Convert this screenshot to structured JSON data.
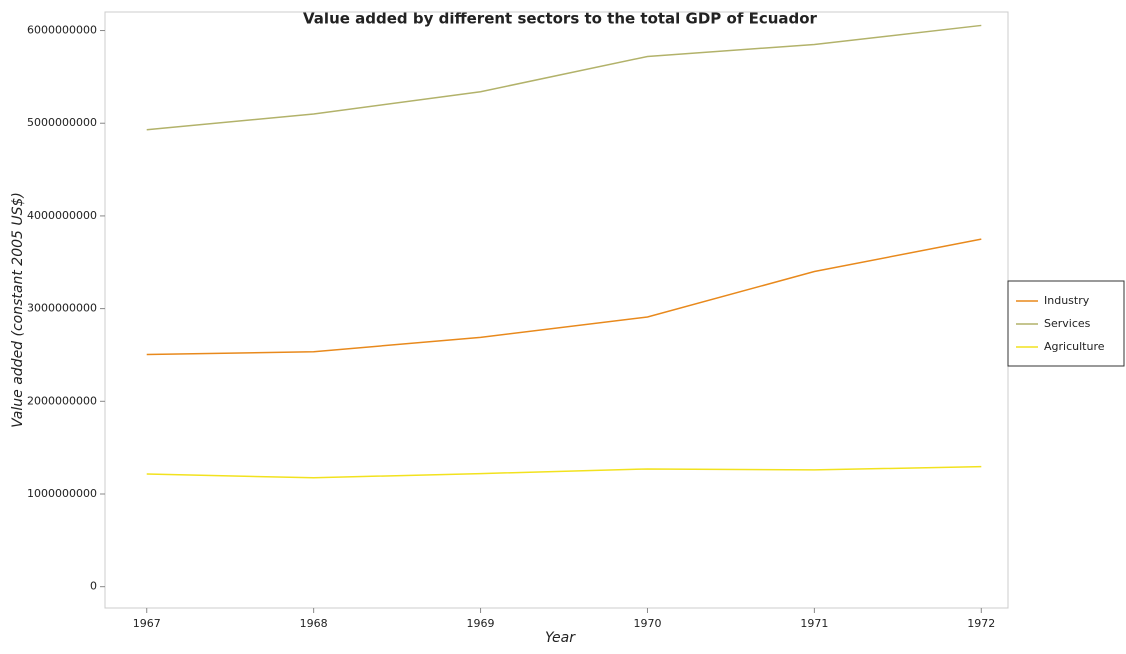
{
  "chart_data": {
    "type": "line",
    "title": "Value added by different sectors to the total GDP of Ecuador",
    "x_label": "Year",
    "y_label": "Value added (constant 2005 US$)",
    "x": [
      1967,
      1968,
      1969,
      1970,
      1971,
      1972
    ],
    "series": [
      {
        "name": "Industry",
        "color": "#e8891c",
        "values": [
          2505000000,
          2535000000,
          2690000000,
          2910000000,
          3400000000,
          3750000000
        ]
      },
      {
        "name": "Services",
        "color": "#b2b26a",
        "values": [
          4930000000,
          5100000000,
          5340000000,
          5720000000,
          5850000000,
          6055000000
        ]
      },
      {
        "name": "Agriculture",
        "color": "#f2e21e",
        "values": [
          1215000000,
          1175000000,
          1220000000,
          1270000000,
          1260000000,
          1295000000
        ]
      }
    ],
    "xlim": [
      1966.75,
      1972.16
    ],
    "xticks": [
      1967,
      1968,
      1969,
      1970,
      1971,
      1972
    ],
    "ylim": [
      -230000000,
      6200000000
    ],
    "yticks": [
      0,
      1000000000,
      2000000000,
      3000000000,
      4000000000,
      5000000000,
      6000000000
    ],
    "legend": "right"
  }
}
